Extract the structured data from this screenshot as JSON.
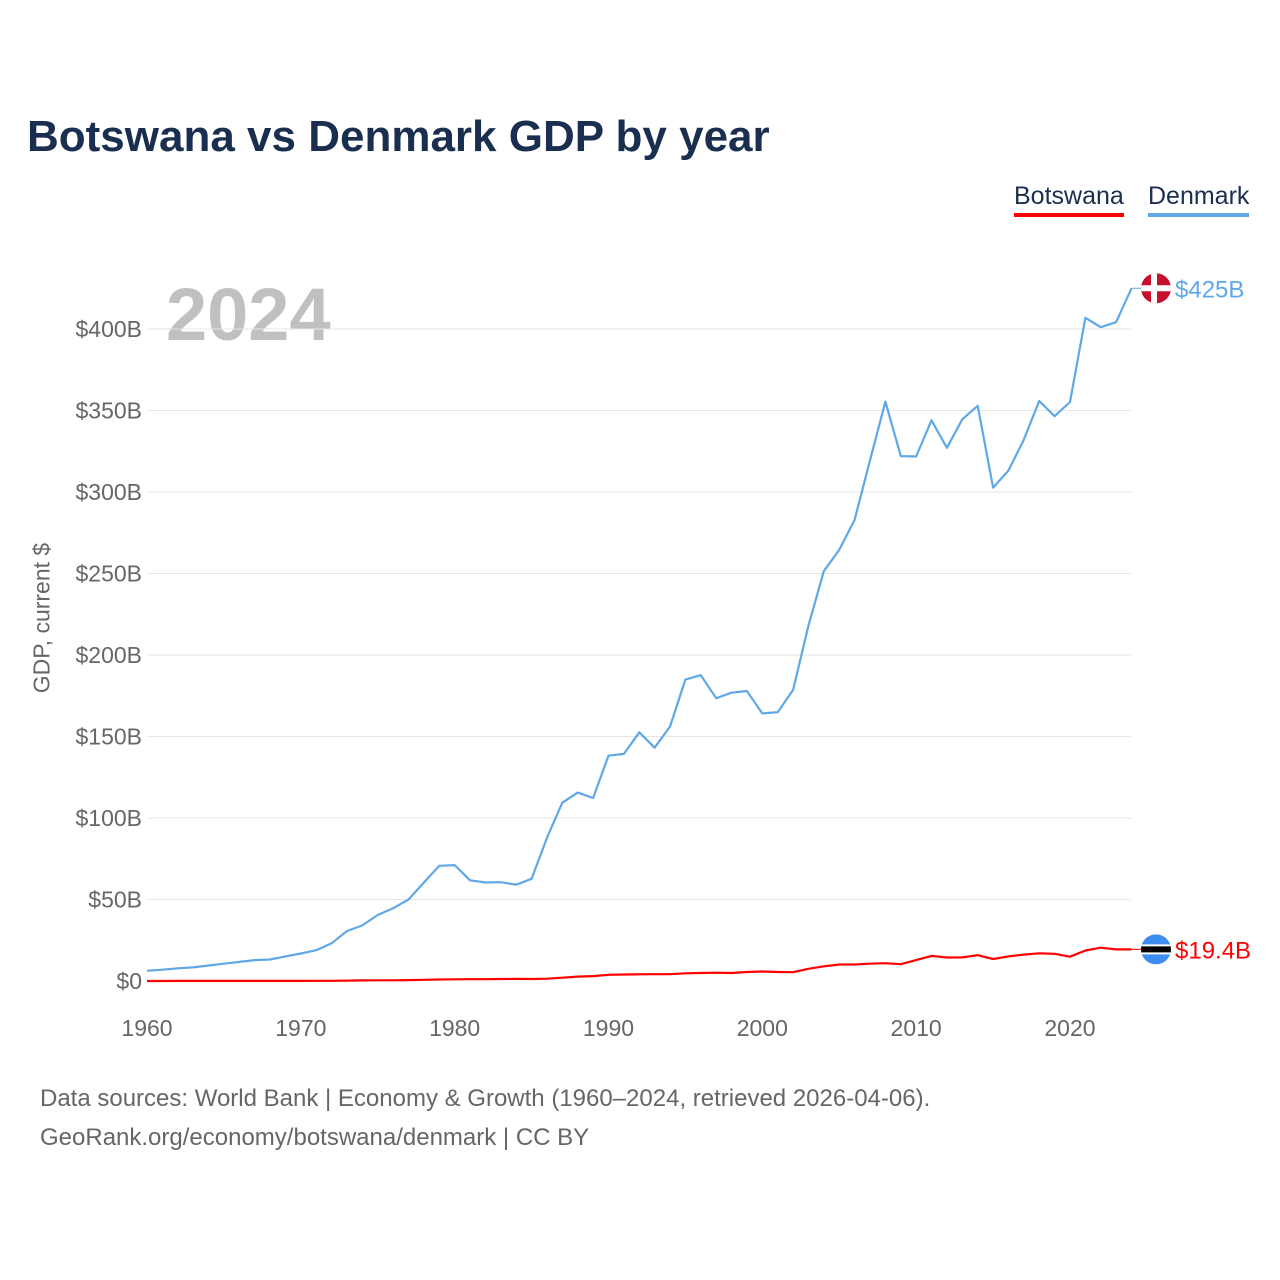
{
  "chart_data": {
    "type": "line",
    "title": "Botswana vs Denmark GDP by year",
    "ylabel": "GDP, current $",
    "xlabel": "",
    "year_label": "2024",
    "xlim": [
      1960,
      2024
    ],
    "ylim": [
      0,
      425
    ],
    "x_ticks": [
      1960,
      1970,
      1980,
      1990,
      2000,
      2010,
      2020
    ],
    "y_ticks": [
      {
        "v": 0,
        "label": "$0"
      },
      {
        "v": 50,
        "label": "$50B"
      },
      {
        "v": 100,
        "label": "$100B"
      },
      {
        "v": 150,
        "label": "$150B"
      },
      {
        "v": 200,
        "label": "$200B"
      },
      {
        "v": 250,
        "label": "$250B"
      },
      {
        "v": 300,
        "label": "$300B"
      },
      {
        "v": 350,
        "label": "$350B"
      },
      {
        "v": 400,
        "label": "$400B"
      }
    ],
    "grid": true,
    "legend_position": "top-right",
    "x_start": 1960,
    "series": [
      {
        "name": "Botswana",
        "color": "#ff0000",
        "end_label": "$19.4B",
        "flag": "botswana-flag",
        "values": [
          0.03,
          0.03,
          0.04,
          0.04,
          0.05,
          0.05,
          0.05,
          0.06,
          0.07,
          0.08,
          0.08,
          0.1,
          0.15,
          0.25,
          0.35,
          0.4,
          0.45,
          0.55,
          0.75,
          0.9,
          1.06,
          1.1,
          1.1,
          1.2,
          1.3,
          1.2,
          1.4,
          2.0,
          2.7,
          3.0,
          3.8,
          4.0,
          4.1,
          4.2,
          4.2,
          4.7,
          4.9,
          5.1,
          4.9,
          5.5,
          5.8,
          5.5,
          5.4,
          7.5,
          9.0,
          10.1,
          10.1,
          10.6,
          10.9,
          10.3,
          12.8,
          15.4,
          14.4,
          14.5,
          15.8,
          13.5,
          15.1,
          16.2,
          17.0,
          16.7,
          14.9,
          18.7,
          20.4,
          19.4,
          19.4
        ]
      },
      {
        "name": "Denmark",
        "color": "#5fa8e8",
        "end_label": "$425B",
        "flag": "denmark-flag",
        "values": [
          6.25,
          6.93,
          7.81,
          8.32,
          9.51,
          10.6,
          11.7,
          12.8,
          13.2,
          15.1,
          16.9,
          18.9,
          23.1,
          30.7,
          34.1,
          40.5,
          44.6,
          50.0,
          60.4,
          70.7,
          71.1,
          61.8,
          60.4,
          60.6,
          59.1,
          62.7,
          87.9,
          109.4,
          115.6,
          112.3,
          138.2,
          139.3,
          152.6,
          143.1,
          156.1,
          185.0,
          187.6,
          173.5,
          176.9,
          177.9,
          164.2,
          164.9,
          178.6,
          218.1,
          251.4,
          264.5,
          282.9,
          319.4,
          355.4,
          322.0,
          321.8,
          344.0,
          327.1,
          344.6,
          352.9,
          302.7,
          313.1,
          332.1,
          355.8,
          346.5,
          355.2,
          406.9,
          401.1,
          404.2,
          425.0
        ]
      }
    ]
  },
  "footer": {
    "line1": "Data sources: World Bank | Economy & Growth (1960–2024, retrieved 2026-04-06).",
    "line2": "GeoRank.org/economy/botswana/denmark | CC BY"
  }
}
